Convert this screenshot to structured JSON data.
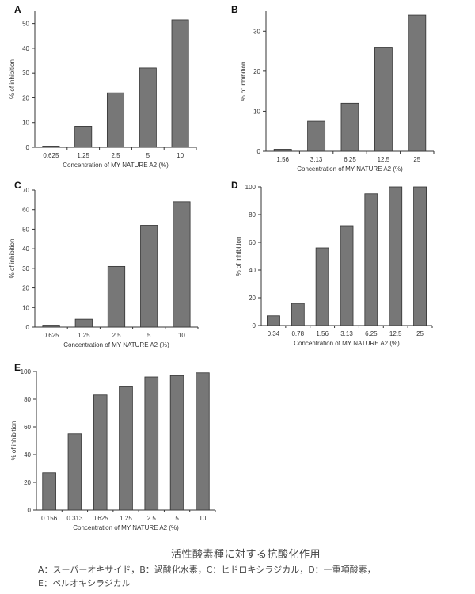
{
  "chart_data": [
    {
      "panel": "A",
      "type": "bar",
      "categories": [
        "0.625",
        "1.25",
        "2.5",
        "5",
        "10"
      ],
      "values": [
        0.5,
        8.5,
        22,
        32,
        51.5
      ],
      "ylim": [
        0,
        55
      ],
      "yticks": [
        0,
        10,
        20,
        30,
        40,
        50
      ],
      "xlabel": "Concentration of MY NATURE A2 (%)",
      "ylabel": "% of inhibition",
      "title": "",
      "grid": false,
      "legend": "none",
      "bar_color": "#777777"
    },
    {
      "panel": "B",
      "type": "bar",
      "categories": [
        "1.56",
        "3.13",
        "6.25",
        "12.5",
        "25"
      ],
      "values": [
        0.5,
        7.5,
        12,
        26,
        34
      ],
      "ylim": [
        0,
        35
      ],
      "yticks": [
        0,
        10,
        20,
        30
      ],
      "xlabel": "Concentration of MY NATURE A2 (%)",
      "ylabel": "% of inhibition",
      "title": "",
      "grid": false,
      "legend": "none",
      "bar_color": "#777777"
    },
    {
      "panel": "C",
      "type": "bar",
      "categories": [
        "0.625",
        "1.25",
        "2.5",
        "5",
        "10"
      ],
      "values": [
        1,
        4,
        31,
        52,
        64
      ],
      "ylim": [
        0,
        70
      ],
      "yticks": [
        0,
        10,
        20,
        30,
        40,
        50,
        60,
        70
      ],
      "xlabel": "Concentration of MY NATURE A2 (%)",
      "ylabel": "% of inhibition",
      "title": "",
      "grid": false,
      "legend": "none",
      "bar_color": "#777777"
    },
    {
      "panel": "D",
      "type": "bar",
      "categories": [
        "0.34",
        "0.78",
        "1.56",
        "3.13",
        "6.25",
        "12.5",
        "25"
      ],
      "values": [
        7,
        16,
        56,
        72,
        95,
        100,
        100
      ],
      "ylim": [
        0,
        100
      ],
      "yticks": [
        0,
        20,
        40,
        60,
        80,
        100
      ],
      "xlabel": "Concentration of MY NATURE A2 (%)",
      "ylabel": "% of inhibition",
      "title": "",
      "grid": false,
      "legend": "none",
      "bar_color": "#777777"
    },
    {
      "panel": "E",
      "type": "bar",
      "categories": [
        "0.156",
        "0.313",
        "0.625",
        "1.25",
        "2.5",
        "5",
        "10"
      ],
      "values": [
        27,
        55,
        83,
        89,
        96,
        97,
        99
      ],
      "ylim": [
        0,
        100
      ],
      "yticks": [
        0,
        20,
        40,
        60,
        80,
        100
      ],
      "xlabel": "Concentration of MY NATURE A2 (%)",
      "ylabel": "% of inhibition",
      "title": "",
      "grid": false,
      "legend": "none",
      "bar_color": "#777777"
    }
  ],
  "caption": {
    "title": "活性酸素種に対する抗酸化作用",
    "line1": "A：スーパーオキサイド，B：過酸化水素，C：ヒドロキシラジカル，D：一重項酸素，",
    "line2": "E：ペルオキシラジカル"
  }
}
